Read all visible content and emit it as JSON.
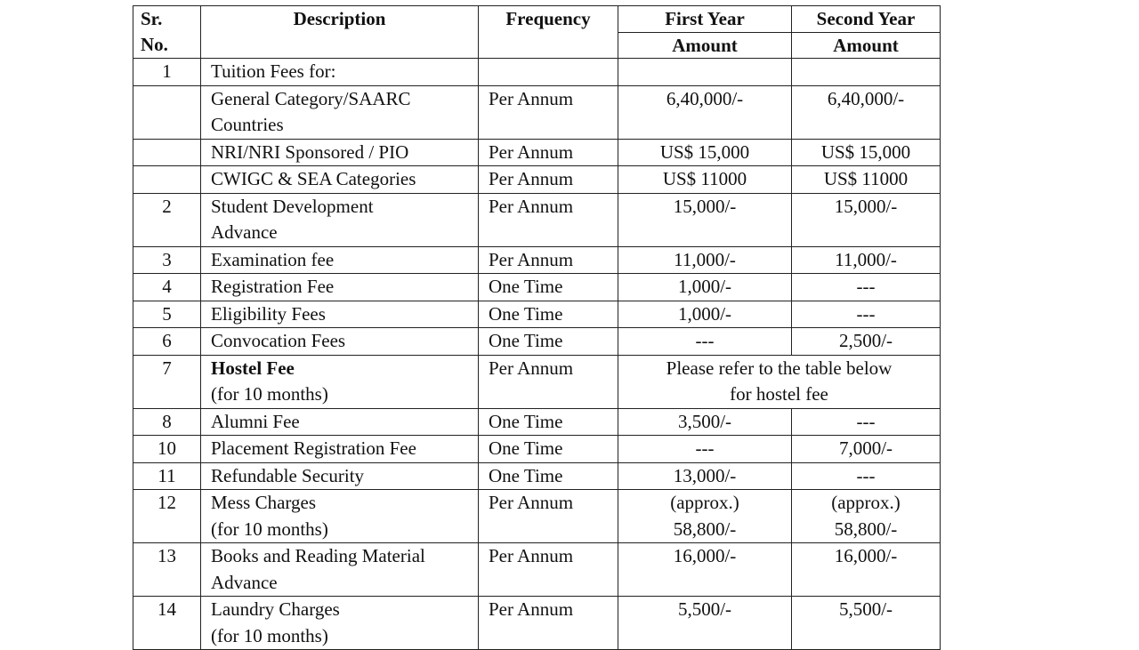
{
  "header": {
    "sr": "Sr.\nNo.",
    "description": "Description",
    "frequency": "Frequency",
    "first_year": "First Year",
    "first_amount": "Amount",
    "second_year": "Second Year",
    "second_amount": "Amount"
  },
  "rows": [
    {
      "sr": "1",
      "description": "Tuition Fees for:"
    },
    {
      "description": "General Category/SAARC\nCountries",
      "frequency": "Per Annum",
      "first": "6,40,000/-",
      "second": "6,40,000/-"
    },
    {
      "description": "NRI/NRI Sponsored / PIO",
      "frequency": "Per Annum",
      "first": "US$ 15,000",
      "second": "US$ 15,000"
    },
    {
      "description": "CWIGC & SEA Categories",
      "frequency": "Per Annum",
      "first": "US$ 11000",
      "second": "US$ 11000"
    },
    {
      "sr": "2",
      "description": "Student Development\nAdvance",
      "frequency": "Per Annum",
      "first": "15,000/-",
      "second": "15,000/-"
    },
    {
      "sr": "3",
      "description": "Examination fee",
      "frequency": "Per Annum",
      "first": "11,000/-",
      "second": "11,000/-"
    },
    {
      "sr": "4",
      "description": "Registration Fee",
      "frequency": "One Time",
      "first": "1,000/-",
      "second": "---"
    },
    {
      "sr": "5",
      "description": "Eligibility Fees",
      "frequency": "One Time",
      "first": "1,000/-",
      "second": "---"
    },
    {
      "sr": "6",
      "description": "Convocation Fees",
      "frequency": "One Time",
      "first": "---",
      "second": "2,500/-"
    },
    {
      "sr": "7",
      "description_bold": "Hostel Fee",
      "description_note": "(for 10 months)",
      "frequency": "Per Annum",
      "both": "Please refer to the table below\nfor hostel fee"
    },
    {
      "sr": "8",
      "description": "Alumni Fee",
      "frequency": "One Time",
      "first": "3,500/-",
      "second": "---"
    },
    {
      "sr": "10",
      "description": "Placement Registration Fee",
      "frequency": "One Time",
      "first": "---",
      "second": "7,000/-"
    },
    {
      "sr": "11",
      "description": "Refundable Security",
      "frequency": "One Time",
      "first": "13,000/-",
      "second": "---"
    },
    {
      "sr": "12",
      "description": "Mess Charges\n(for 10 months)",
      "frequency": "Per Annum",
      "first": "(approx.)\n58,800/-",
      "second": "(approx.)\n58,800/-"
    },
    {
      "sr": "13",
      "description": "Books and Reading Material\nAdvance",
      "frequency": "Per Annum",
      "first": "16,000/-",
      "second": "16,000/-"
    },
    {
      "sr": "14",
      "description": "Laundry Charges\n(for 10 months)",
      "frequency": "Per Annum",
      "first": "5,500/-",
      "second": "5,500/-"
    }
  ]
}
